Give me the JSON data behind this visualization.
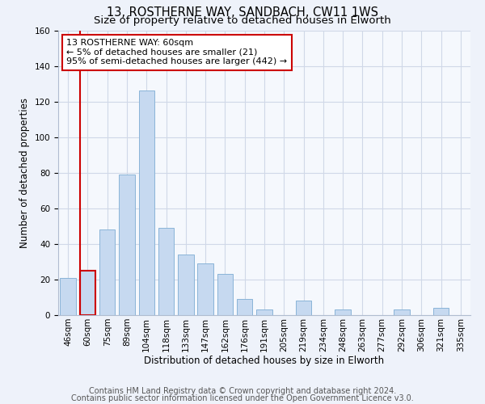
{
  "title_line1": "13, ROSTHERNE WAY, SANDBACH, CW11 1WS",
  "title_line2": "Size of property relative to detached houses in Elworth",
  "xlabel": "Distribution of detached houses by size in Elworth",
  "ylabel": "Number of detached properties",
  "bar_labels": [
    "46sqm",
    "60sqm",
    "75sqm",
    "89sqm",
    "104sqm",
    "118sqm",
    "133sqm",
    "147sqm",
    "162sqm",
    "176sqm",
    "191sqm",
    "205sqm",
    "219sqm",
    "234sqm",
    "248sqm",
    "263sqm",
    "277sqm",
    "292sqm",
    "306sqm",
    "321sqm",
    "335sqm"
  ],
  "bar_heights": [
    21,
    25,
    48,
    79,
    126,
    49,
    34,
    29,
    23,
    9,
    3,
    0,
    8,
    0,
    3,
    0,
    0,
    3,
    0,
    4,
    0
  ],
  "bar_color": "#c6d9f0",
  "bar_edge_color": "#8ab4d8",
  "highlight_bar_index": 1,
  "highlight_bar_edge_color": "#cc0000",
  "highlight_line_color": "#cc0000",
  "annotation_text": "13 ROSTHERNE WAY: 60sqm\n← 5% of detached houses are smaller (21)\n95% of semi-detached houses are larger (442) →",
  "annotation_box_edge_color": "#cc0000",
  "annotation_box_face_color": "#ffffff",
  "ylim": [
    0,
    160
  ],
  "yticks": [
    0,
    20,
    40,
    60,
    80,
    100,
    120,
    140,
    160
  ],
  "footer_line1": "Contains HM Land Registry data © Crown copyright and database right 2024.",
  "footer_line2": "Contains public sector information licensed under the Open Government Licence v3.0.",
  "bg_color": "#eef2fa",
  "plot_bg_color": "#f5f8fd",
  "grid_color": "#d0d8e8",
  "title_fontsize": 10.5,
  "subtitle_fontsize": 9.5,
  "axis_label_fontsize": 8.5,
  "tick_fontsize": 7.5,
  "footer_fontsize": 7.0,
  "annotation_fontsize": 8.0
}
